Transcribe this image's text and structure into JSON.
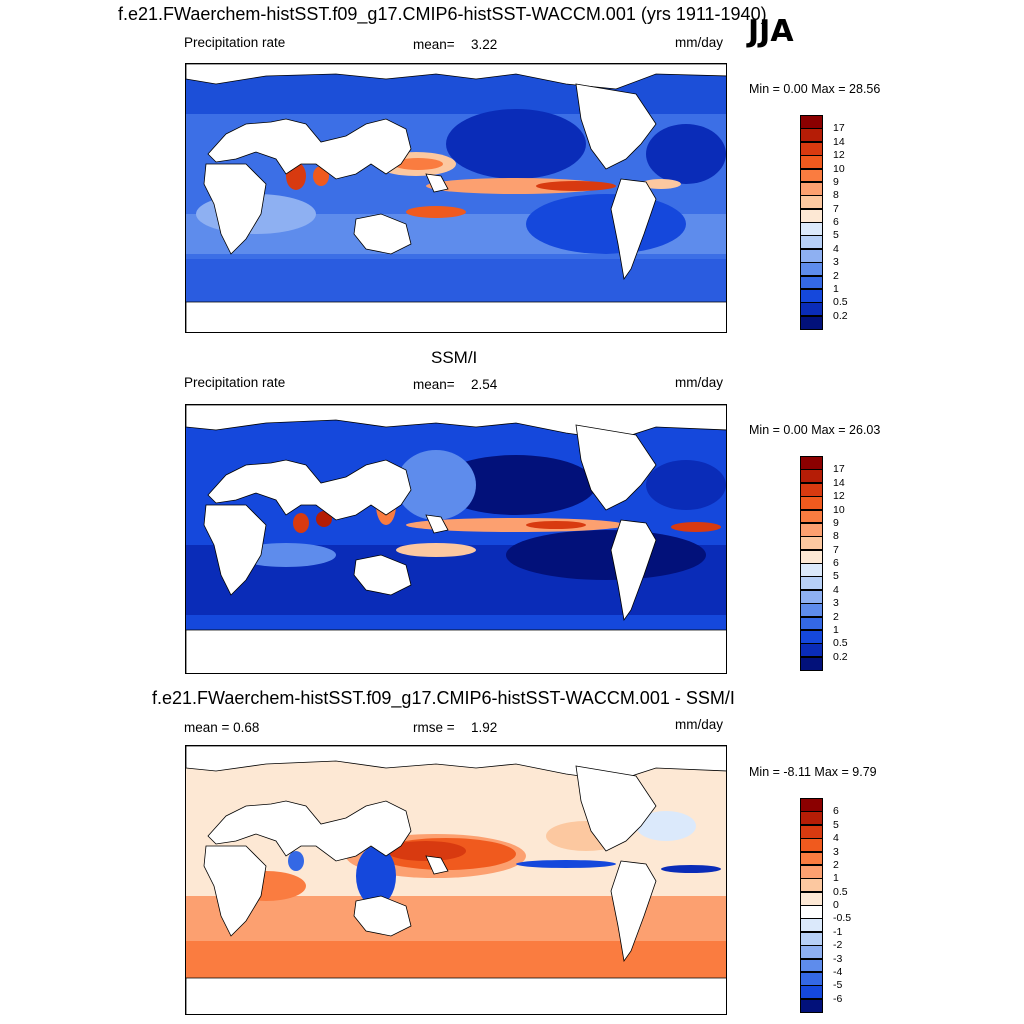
{
  "season": "JJA",
  "panels": [
    {
      "id": "model",
      "title": "f.e21.FWaerchem-histSST.f09_g17.CMIP6-histSST-WACCM.001 (yrs 1911-1940)",
      "left_label": "Precipitation rate",
      "stat_label": "mean=",
      "stat_value": "3.22",
      "units": "mm/day",
      "minmax": "Min =   0.00 Max =  28.56",
      "colorbar": {
        "labels": [
          "17",
          "14",
          "12",
          "10",
          "9",
          "8",
          "7",
          "6",
          "5",
          "4",
          "3",
          "2",
          "1",
          "0.5",
          "0.2"
        ],
        "colors": [
          "#8b0000",
          "#b51d06",
          "#d83a10",
          "#f05a1e",
          "#fa7c40",
          "#fca070",
          "#fcc8a0",
          "#fde8d4",
          "#dbe9fb",
          "#b7d0f7",
          "#8eb0f2",
          "#5e8cec",
          "#3468e5",
          "#1548dc",
          "#0a2cb8",
          "#02117a"
        ]
      }
    },
    {
      "id": "obs",
      "title": "SSM/I",
      "left_label": "Precipitation rate",
      "stat_label": "mean=",
      "stat_value": "2.54",
      "units": "mm/day",
      "minmax": "Min =   0.00 Max =  26.03",
      "colorbar": {
        "labels": [
          "17",
          "14",
          "12",
          "10",
          "9",
          "8",
          "7",
          "6",
          "5",
          "4",
          "3",
          "2",
          "1",
          "0.5",
          "0.2"
        ],
        "colors": [
          "#8b0000",
          "#b51d06",
          "#d83a10",
          "#f05a1e",
          "#fa7c40",
          "#fca070",
          "#fcc8a0",
          "#fde8d4",
          "#dbe9fb",
          "#b7d0f7",
          "#8eb0f2",
          "#5e8cec",
          "#3468e5",
          "#1548dc",
          "#0a2cb8",
          "#02117a"
        ]
      }
    },
    {
      "id": "diff",
      "title": "f.e21.FWaerchem-histSST.f09_g17.CMIP6-histSST-WACCM.001 - SSM/I",
      "left_label": "mean =   0.68",
      "stat_label": "rmse =",
      "stat_value": "1.92",
      "units": "mm/day",
      "minmax": "Min =  -8.11 Max =   9.79",
      "colorbar": {
        "labels": [
          "6",
          "5",
          "4",
          "3",
          "2",
          "1",
          "0.5",
          "0",
          "-0.5",
          "-1",
          "-2",
          "-3",
          "-4",
          "-5",
          "-6"
        ],
        "colors": [
          "#8b0000",
          "#b51d06",
          "#d83a10",
          "#f05a1e",
          "#fa7c40",
          "#fca070",
          "#fcc8a0",
          "#fde8d4",
          "#ffffff",
          "#dbe9fb",
          "#b7d0f7",
          "#8eb0f2",
          "#5e8cec",
          "#3468e5",
          "#1548dc",
          "#02117a"
        ]
      }
    }
  ]
}
